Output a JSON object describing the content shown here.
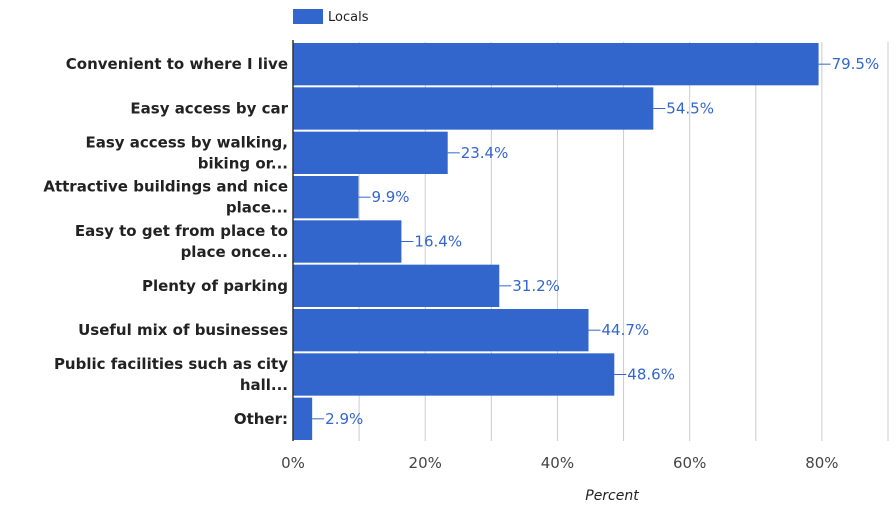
{
  "chart_data": {
    "type": "bar",
    "orientation": "horizontal",
    "categories": [
      "Convenient to where I live",
      "Easy access by car",
      "Easy access by walking, biking or...",
      "Attractive buildings and nice place...",
      "Easy to get from place to place once...",
      "Plenty of parking",
      "Useful mix of businesses",
      "Public facilities such as city hall...",
      "Other:"
    ],
    "category_lines": [
      [
        "Convenient to where I live"
      ],
      [
        "Easy access by car"
      ],
      [
        "Easy access by walking,",
        "biking or..."
      ],
      [
        "Attractive buildings and nice",
        "place..."
      ],
      [
        "Easy to get from place to",
        "place once..."
      ],
      [
        "Plenty of parking"
      ],
      [
        "Useful mix of businesses"
      ],
      [
        "Public facilities such as city",
        "hall..."
      ],
      [
        "Other:"
      ]
    ],
    "series": [
      {
        "name": "Locals",
        "values": [
          79.5,
          54.5,
          23.4,
          9.9,
          16.4,
          31.2,
          44.7,
          48.6,
          2.9
        ]
      }
    ],
    "data_labels": [
      "79.5%",
      "54.5%",
      "23.4%",
      "9.9%",
      "16.4%",
      "31.2%",
      "44.7%",
      "48.6%",
      "2.9%"
    ],
    "xlabel": "Percent",
    "xlim": [
      0,
      90
    ],
    "x_ticks": [
      0,
      20,
      40,
      60,
      80
    ],
    "x_tick_labels": [
      "0%",
      "20%",
      "40%",
      "60%",
      "80%"
    ],
    "grid": true,
    "legend_position": "top",
    "colors": {
      "bar": "#3366cc",
      "grid": "#cccccc",
      "label": "#3366cc"
    }
  }
}
